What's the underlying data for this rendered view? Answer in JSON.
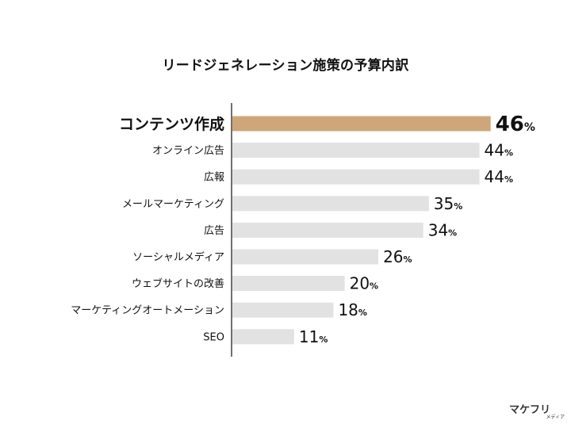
{
  "title": "リードジェネレーション施策の予算内訳",
  "logo": {
    "main": "マケフリ",
    "sub": "メディア"
  },
  "colors": {
    "highlight": "#cfa67a",
    "bar": "#e2e2e2",
    "axis": "#111111",
    "text": "#111111"
  },
  "chart_data": {
    "type": "bar",
    "orientation": "horizontal",
    "title": "リードジェネレーション施策の予算内訳",
    "unit": "%",
    "categories": [
      "コンテンツ作成",
      "オンライン広告",
      "広報",
      "メールマーケティング",
      "広告",
      "ソーシャルメディア",
      "ウェブサイトの改善",
      "マーケティングオートメーション",
      "SEO"
    ],
    "values": [
      46,
      44,
      44,
      35,
      34,
      26,
      20,
      18,
      11
    ],
    "highlight_index": 0,
    "xlim": [
      0,
      50
    ],
    "grid": false,
    "legend": "none"
  }
}
